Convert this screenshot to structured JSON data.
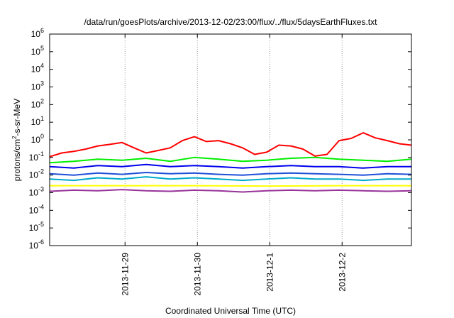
{
  "chart_data": {
    "type": "line",
    "title": "/data/run/goesPlots/archive/2013-12-02/23:00/flux/../flux/5daysEarthFluxes.txt",
    "xlabel": "Coordinated Universal Time (UTC)",
    "ylabel": "protons/cm²-s-sr-MeV",
    "ylabel_parts": {
      "prefix": "protons/cm",
      "sup": "2",
      "suffix": "-s-sr-MeV"
    },
    "y_scale": "log",
    "ylim": [
      1e-06,
      1000000.0
    ],
    "y_ticks": [
      {
        "base": "10",
        "exp": "-6",
        "value": 1e-06
      },
      {
        "base": "10",
        "exp": "-5",
        "value": 1e-05
      },
      {
        "base": "10",
        "exp": "-4",
        "value": 0.0001
      },
      {
        "base": "10",
        "exp": "-3",
        "value": 0.001
      },
      {
        "base": "10",
        "exp": "-2",
        "value": 0.01
      },
      {
        "base": "10",
        "exp": "-1",
        "value": 0.1
      },
      {
        "base": "10",
        "exp": "0",
        "value": 1
      },
      {
        "base": "10",
        "exp": "1",
        "value": 10
      },
      {
        "base": "10",
        "exp": "2",
        "value": 100
      },
      {
        "base": "10",
        "exp": "3",
        "value": 1000
      },
      {
        "base": "10",
        "exp": "4",
        "value": 10000
      },
      {
        "base": "10",
        "exp": "5",
        "value": 100000
      },
      {
        "base": "10",
        "exp": "6",
        "value": 1000000
      }
    ],
    "xlim": [
      "2013-11-27T23:00",
      "2013-12-02T23:00"
    ],
    "x_ticks": [
      {
        "label": "2013-11-29",
        "value": "2013-11-29T00:00"
      },
      {
        "label": "2013-11-30",
        "value": "2013-11-30T00:00"
      },
      {
        "label": "2013-12-1",
        "value": "2013-12-01T00:00"
      },
      {
        "label": "2013-12-2",
        "value": "2013-12-02T00:00"
      }
    ],
    "grid": true,
    "legend": "none",
    "series": [
      {
        "color": "#ff0000",
        "x": [
          "2013-11-27T23:00",
          "2013-11-28T03:00",
          "2013-11-28T07:00",
          "2013-11-28T11:00",
          "2013-11-28T15:00",
          "2013-11-28T19:00",
          "2013-11-28T23:00",
          "2013-11-29T03:00",
          "2013-11-29T07:00",
          "2013-11-29T11:00",
          "2013-11-29T15:00",
          "2013-11-29T19:00",
          "2013-11-29T23:00",
          "2013-11-30T03:00",
          "2013-11-30T07:00",
          "2013-11-30T11:00",
          "2013-11-30T15:00",
          "2013-11-30T19:00",
          "2013-11-30T23:00",
          "2013-12-01T03:00",
          "2013-12-01T07:00",
          "2013-12-01T11:00",
          "2013-12-01T15:00",
          "2013-12-01T19:00",
          "2013-12-01T23:00",
          "2013-12-02T03:00",
          "2013-12-02T07:00",
          "2013-12-02T11:00",
          "2013-12-02T15:00",
          "2013-12-02T19:00",
          "2013-12-02T23:00"
        ],
        "values": [
          0.11,
          0.18,
          0.22,
          0.3,
          0.45,
          0.55,
          0.7,
          0.35,
          0.18,
          0.25,
          0.35,
          0.9,
          1.5,
          0.8,
          0.9,
          0.6,
          0.35,
          0.15,
          0.2,
          0.5,
          0.45,
          0.3,
          0.12,
          0.15,
          0.9,
          1.2,
          2.5,
          1.3,
          0.9,
          0.6,
          0.5
        ]
      },
      {
        "color": "#00ee00",
        "x": [
          "2013-11-27T23:00",
          "2013-11-28T07:00",
          "2013-11-28T15:00",
          "2013-11-28T23:00",
          "2013-11-29T07:00",
          "2013-11-29T15:00",
          "2013-11-29T23:00",
          "2013-11-30T07:00",
          "2013-11-30T15:00",
          "2013-11-30T23:00",
          "2013-12-01T07:00",
          "2013-12-01T15:00",
          "2013-12-01T23:00",
          "2013-12-02T07:00",
          "2013-12-02T15:00",
          "2013-12-02T23:00"
        ],
        "values": [
          0.05,
          0.06,
          0.08,
          0.07,
          0.09,
          0.06,
          0.1,
          0.08,
          0.06,
          0.07,
          0.09,
          0.1,
          0.08,
          0.07,
          0.06,
          0.08
        ]
      },
      {
        "color": "#0000ee",
        "x": [
          "2013-11-27T23:00",
          "2013-11-28T07:00",
          "2013-11-28T15:00",
          "2013-11-28T23:00",
          "2013-11-29T07:00",
          "2013-11-29T15:00",
          "2013-11-29T23:00",
          "2013-11-30T07:00",
          "2013-11-30T15:00",
          "2013-11-30T23:00",
          "2013-12-01T07:00",
          "2013-12-01T15:00",
          "2013-12-01T23:00",
          "2013-12-02T07:00",
          "2013-12-02T15:00",
          "2013-12-02T23:00"
        ],
        "values": [
          0.03,
          0.025,
          0.035,
          0.03,
          0.04,
          0.03,
          0.035,
          0.03,
          0.025,
          0.03,
          0.035,
          0.03,
          0.03,
          0.025,
          0.03,
          0.03
        ]
      },
      {
        "color": "#1f4fd8",
        "x": [
          "2013-11-27T23:00",
          "2013-11-28T07:00",
          "2013-11-28T15:00",
          "2013-11-28T23:00",
          "2013-11-29T07:00",
          "2013-11-29T15:00",
          "2013-11-29T23:00",
          "2013-11-30T07:00",
          "2013-11-30T15:00",
          "2013-11-30T23:00",
          "2013-12-01T07:00",
          "2013-12-01T15:00",
          "2013-12-01T23:00",
          "2013-12-02T07:00",
          "2013-12-02T15:00",
          "2013-12-02T23:00"
        ],
        "values": [
          0.012,
          0.01,
          0.013,
          0.011,
          0.014,
          0.012,
          0.013,
          0.011,
          0.01,
          0.012,
          0.013,
          0.012,
          0.011,
          0.01,
          0.012,
          0.011
        ]
      },
      {
        "color": "#00aacc",
        "x": [
          "2013-11-27T23:00",
          "2013-11-28T07:00",
          "2013-11-28T15:00",
          "2013-11-28T23:00",
          "2013-11-29T07:00",
          "2013-11-29T15:00",
          "2013-11-29T23:00",
          "2013-11-30T07:00",
          "2013-11-30T15:00",
          "2013-11-30T23:00",
          "2013-12-01T07:00",
          "2013-12-01T15:00",
          "2013-12-01T23:00",
          "2013-12-02T07:00",
          "2013-12-02T15:00",
          "2013-12-02T23:00"
        ],
        "values": [
          0.006,
          0.005,
          0.007,
          0.006,
          0.008,
          0.006,
          0.007,
          0.006,
          0.005,
          0.006,
          0.007,
          0.006,
          0.006,
          0.005,
          0.006,
          0.006
        ]
      },
      {
        "color": "#ffff00",
        "x": [
          "2013-11-27T23:00",
          "2013-11-28T23:00",
          "2013-11-29T23:00",
          "2013-11-30T23:00",
          "2013-12-01T23:00",
          "2013-12-02T23:00"
        ],
        "values": [
          0.0025,
          0.0025,
          0.0025,
          0.0024,
          0.0025,
          0.0025
        ]
      },
      {
        "color": "#993399",
        "x": [
          "2013-11-27T23:00",
          "2013-11-28T07:00",
          "2013-11-28T15:00",
          "2013-11-28T23:00",
          "2013-11-29T07:00",
          "2013-11-29T15:00",
          "2013-11-29T23:00",
          "2013-11-30T07:00",
          "2013-11-30T15:00",
          "2013-11-30T23:00",
          "2013-12-01T07:00",
          "2013-12-01T15:00",
          "2013-12-01T23:00",
          "2013-12-02T07:00",
          "2013-12-02T15:00",
          "2013-12-02T23:00"
        ],
        "values": [
          0.0012,
          0.0014,
          0.0013,
          0.0015,
          0.0013,
          0.0012,
          0.0014,
          0.0013,
          0.0011,
          0.0013,
          0.0014,
          0.0013,
          0.0014,
          0.0013,
          0.0012,
          0.0013
        ]
      }
    ]
  }
}
